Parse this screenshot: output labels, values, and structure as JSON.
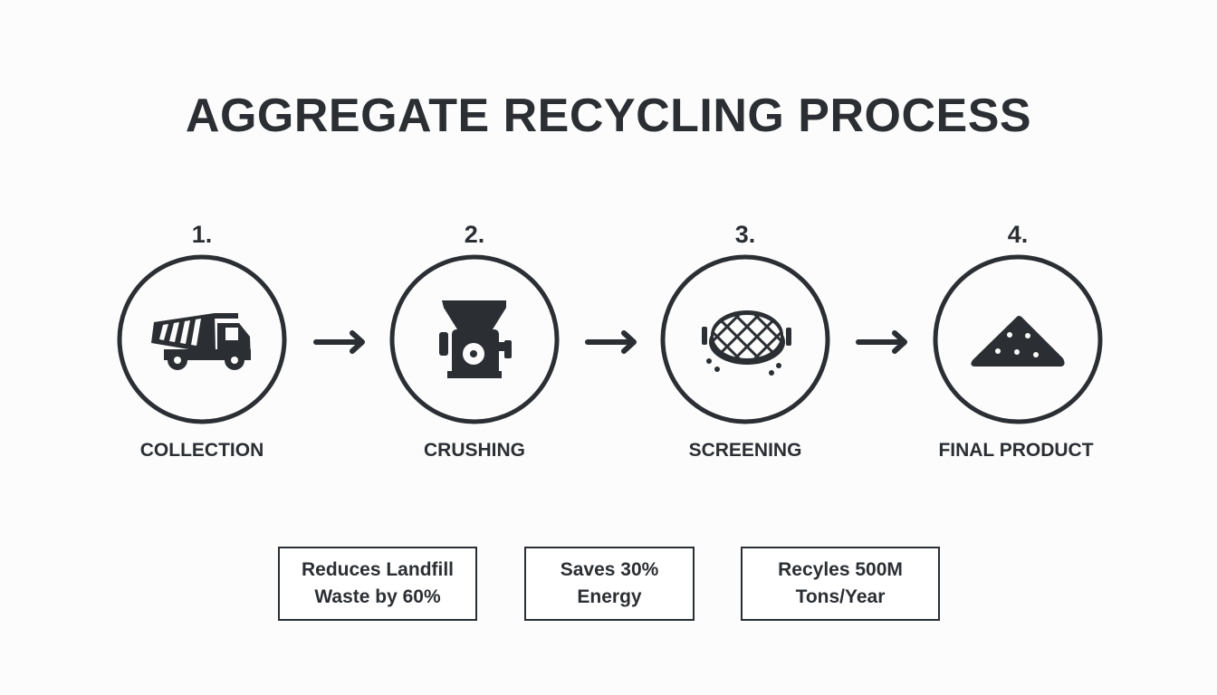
{
  "title": "AGGREGATE RECYCLING PROCESS",
  "steps": [
    {
      "number": "1.",
      "label": "COLLECTION",
      "icon": "dump-truck-icon"
    },
    {
      "number": "2.",
      "label": "CRUSHING",
      "icon": "crusher-icon"
    },
    {
      "number": "3.",
      "label": "SCREENING",
      "icon": "sieve-icon"
    },
    {
      "number": "4.",
      "label": "FINAL PRODUCT",
      "icon": "aggregate-pile-icon"
    }
  ],
  "stats": [
    {
      "line1": "Reduces Landfill",
      "line2": "Waste by 60%"
    },
    {
      "line1": "Saves 30%",
      "line2": "Energy"
    },
    {
      "line1": "Recyles 500M",
      "line2": "Tons/Year"
    }
  ],
  "colors": {
    "ink": "#2b2f33",
    "background": "#fcfcfc"
  }
}
